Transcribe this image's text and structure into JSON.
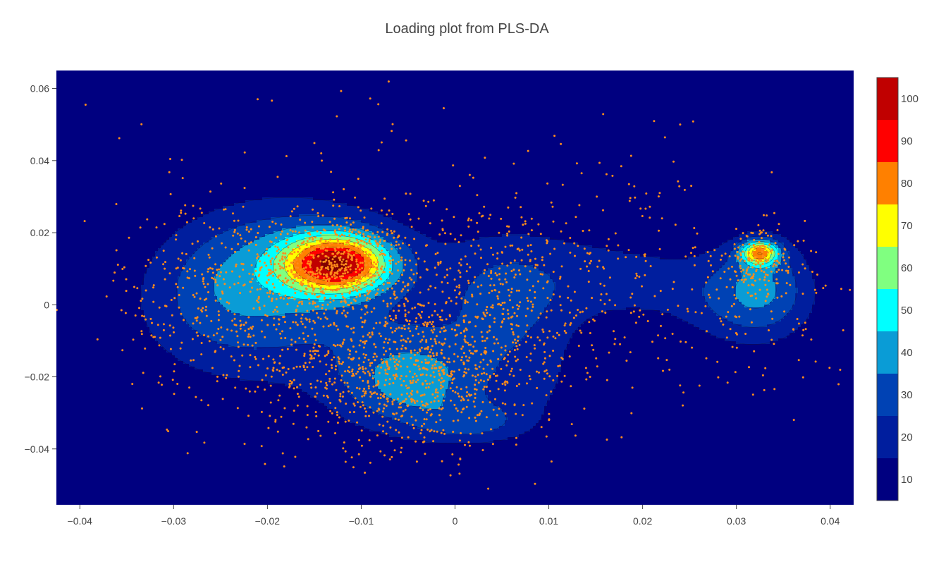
{
  "chart_data": {
    "type": "contour",
    "title": "Loading plot from PLS-DA",
    "xlabel": "",
    "ylabel": "",
    "xlim": [
      -0.0425,
      0.0425
    ],
    "ylim": [
      -0.0555,
      0.065
    ],
    "x_ticks": [
      -0.04,
      -0.03,
      -0.02,
      -0.01,
      0,
      0.01,
      0.02,
      0.03,
      0.04
    ],
    "x_tick_labels": [
      "−0.04",
      "−0.03",
      "−0.02",
      "−0.01",
      "0",
      "0.01",
      "0.02",
      "0.03",
      "0.04"
    ],
    "y_ticks": [
      0.06,
      0.04,
      0.02,
      0,
      -0.02,
      -0.04
    ],
    "y_tick_labels": [
      "0.06",
      "0.04",
      "0.02",
      "0",
      "−0.02",
      "−0.04"
    ],
    "colorbar": {
      "range": [
        5,
        105
      ],
      "ticks": [
        10,
        20,
        30,
        40,
        50,
        60,
        70,
        80,
        90,
        100
      ],
      "tick_labels": [
        "10",
        "20",
        "30",
        "40",
        "50",
        "60",
        "70",
        "80",
        "90",
        "100"
      ],
      "bands": [
        {
          "from": 5,
          "to": 15,
          "color": "#000080"
        },
        {
          "from": 15,
          "to": 25,
          "color": "#001e9e"
        },
        {
          "from": 25,
          "to": 35,
          "color": "#0042b4"
        },
        {
          "from": 35,
          "to": 45,
          "color": "#0a9cd6"
        },
        {
          "from": 45,
          "to": 55,
          "color": "#00ffff"
        },
        {
          "from": 55,
          "to": 65,
          "color": "#80ff80"
        },
        {
          "from": 65,
          "to": 75,
          "color": "#ffff00"
        },
        {
          "from": 75,
          "to": 85,
          "color": "#ff8000"
        },
        {
          "from": 85,
          "to": 95,
          "color": "#ff0000"
        },
        {
          "from": 95,
          "to": 105,
          "color": "#c00000"
        },
        {
          "from": 105,
          "to": 115,
          "color": "#800000"
        }
      ]
    },
    "density_components": [
      {
        "cx": -0.0125,
        "cy": 0.0115,
        "sx": 0.0038,
        "sy": 0.0055,
        "amp": 78
      },
      {
        "cx": -0.0175,
        "cy": 0.014,
        "sx": 0.0085,
        "sy": 0.013,
        "amp": 24
      },
      {
        "cx": -0.0045,
        "cy": -0.022,
        "sx": 0.0055,
        "sy": 0.0095,
        "amp": 30
      },
      {
        "cx": -0.025,
        "cy": -0.001,
        "sx": 0.0075,
        "sy": 0.015,
        "amp": 20
      },
      {
        "cx": 0.002,
        "cy": -0.033,
        "sx": 0.004,
        "sy": 0.004,
        "amp": 18
      },
      {
        "cx": -0.0085,
        "cy": -0.008,
        "sx": 0.013,
        "sy": 0.02,
        "amp": 14
      },
      {
        "cx": 0.0055,
        "cy": 0.001,
        "sx": 0.0045,
        "sy": 0.012,
        "amp": 14
      },
      {
        "cx": 0.009,
        "cy": -0.023,
        "sx": 0.0045,
        "sy": 0.012,
        "amp": 10
      },
      {
        "cx": 0.012,
        "cy": 0.01,
        "sx": 0.009,
        "sy": 0.012,
        "amp": 12
      },
      {
        "cx": 0.022,
        "cy": 0.006,
        "sx": 0.007,
        "sy": 0.008,
        "amp": 10
      },
      {
        "cx": 0.0325,
        "cy": 0.0145,
        "sx": 0.0014,
        "sy": 0.0024,
        "amp": 62
      },
      {
        "cx": 0.033,
        "cy": 0.007,
        "sx": 0.004,
        "sy": 0.01,
        "amp": 26
      },
      {
        "cx": 0.031,
        "cy": -0.003,
        "sx": 0.0055,
        "sy": 0.009,
        "amp": 14
      }
    ],
    "scatter": {
      "color": "#ff8c1a",
      "clusters": [
        {
          "cx": -0.0125,
          "cy": 0.011,
          "sx": 0.004,
          "sy": 0.0065,
          "n": 650
        },
        {
          "cx": -0.006,
          "cy": -0.018,
          "sx": 0.007,
          "sy": 0.011,
          "n": 900
        },
        {
          "cx": -0.023,
          "cy": 0.002,
          "sx": 0.0065,
          "sy": 0.014,
          "n": 450
        },
        {
          "cx": 0.004,
          "cy": -0.002,
          "sx": 0.0055,
          "sy": 0.016,
          "n": 350
        },
        {
          "cx": 0.012,
          "cy": 0.005,
          "sx": 0.011,
          "sy": 0.017,
          "n": 250
        },
        {
          "cx": 0.0325,
          "cy": 0.012,
          "sx": 0.0025,
          "sy": 0.005,
          "n": 160
        },
        {
          "cx": 0.03,
          "cy": -0.004,
          "sx": 0.007,
          "sy": 0.009,
          "n": 110
        },
        {
          "cx": -0.005,
          "cy": 0.015,
          "sx": 0.02,
          "sy": 0.022,
          "n": 150
        }
      ]
    }
  }
}
